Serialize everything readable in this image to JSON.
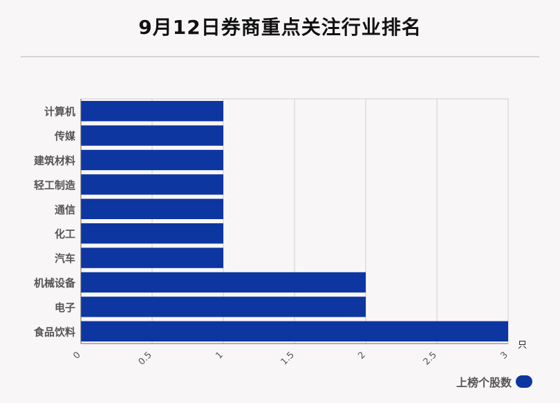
{
  "title": "9月12日券商重点关注行业排名",
  "chart_data": {
    "type": "bar",
    "orientation": "horizontal",
    "categories": [
      "计算机",
      "传媒",
      "建筑材料",
      "轻工制造",
      "通信",
      "化工",
      "汽车",
      "机械设备",
      "电子",
      "食品饮料"
    ],
    "series": [
      {
        "name": "上榜个股数",
        "values": [
          1,
          1,
          1,
          1,
          1,
          1,
          1,
          2,
          2,
          3
        ]
      }
    ],
    "xlim": [
      0,
      3
    ],
    "xticks": [
      "0",
      "0.5",
      "1",
      "1.5",
      "2",
      "2.5",
      "3"
    ],
    "xunit": "只",
    "grid": true,
    "legend_position": "bottom-right",
    "bar_color": "#0d36a0"
  }
}
